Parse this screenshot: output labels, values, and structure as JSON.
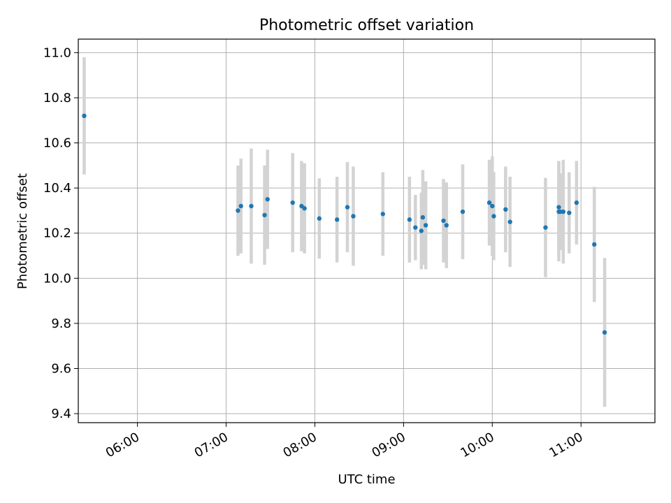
{
  "chart_data": {
    "type": "scatter",
    "title": "Photometric offset variation",
    "xlabel": "UTC time",
    "ylabel": "Photometric offset",
    "x_ticks": [
      "06:00",
      "07:00",
      "08:00",
      "09:00",
      "10:00",
      "11:00"
    ],
    "y_ticks": [
      "9.4",
      "9.6",
      "9.8",
      "10.0",
      "10.2",
      "10.4",
      "10.6",
      "10.8",
      "11.0"
    ],
    "xlim": [
      "05:20",
      "11:50"
    ],
    "ylim": [
      9.36,
      11.06
    ],
    "grid": true,
    "colors": {
      "point": "#1f77b4",
      "errorbar": "#d3d3d3"
    },
    "points": [
      {
        "x": "05:24",
        "y": 10.72,
        "yerr": 0.26
      },
      {
        "x": "07:08",
        "y": 10.3,
        "yerr": 0.2
      },
      {
        "x": "07:10",
        "y": 10.32,
        "yerr": 0.21
      },
      {
        "x": "07:17",
        "y": 10.32,
        "yerr": 0.255
      },
      {
        "x": "07:26",
        "y": 10.28,
        "yerr": 0.22
      },
      {
        "x": "07:28",
        "y": 10.35,
        "yerr": 0.22
      },
      {
        "x": "07:45",
        "y": 10.335,
        "yerr": 0.22
      },
      {
        "x": "07:51",
        "y": 10.32,
        "yerr": 0.2
      },
      {
        "x": "07:53",
        "y": 10.31,
        "yerr": 0.2
      },
      {
        "x": "08:03",
        "y": 10.265,
        "yerr": 0.178
      },
      {
        "x": "08:15",
        "y": 10.26,
        "yerr": 0.19
      },
      {
        "x": "08:22",
        "y": 10.315,
        "yerr": 0.2
      },
      {
        "x": "08:26",
        "y": 10.275,
        "yerr": 0.22
      },
      {
        "x": "08:46",
        "y": 10.285,
        "yerr": 0.185
      },
      {
        "x": "09:04",
        "y": 10.26,
        "yerr": 0.19
      },
      {
        "x": "09:08",
        "y": 10.225,
        "yerr": 0.145
      },
      {
        "x": "09:12",
        "y": 10.21,
        "yerr": 0.17
      },
      {
        "x": "09:13",
        "y": 10.27,
        "yerr": 0.21
      },
      {
        "x": "09:15",
        "y": 10.235,
        "yerr": 0.195
      },
      {
        "x": "09:27",
        "y": 10.255,
        "yerr": 0.185
      },
      {
        "x": "09:29",
        "y": 10.235,
        "yerr": 0.19
      },
      {
        "x": "09:40",
        "y": 10.295,
        "yerr": 0.21
      },
      {
        "x": "09:58",
        "y": 10.335,
        "yerr": 0.19
      },
      {
        "x": "10:00",
        "y": 10.32,
        "yerr": 0.22
      },
      {
        "x": "10:01",
        "y": 10.275,
        "yerr": 0.195
      },
      {
        "x": "10:09",
        "y": 10.305,
        "yerr": 0.19
      },
      {
        "x": "10:12",
        "y": 10.25,
        "yerr": 0.2
      },
      {
        "x": "10:36",
        "y": 10.225,
        "yerr": 0.22
      },
      {
        "x": "10:45",
        "y": 10.315,
        "yerr": 0.205
      },
      {
        "x": "10:45",
        "y": 10.295,
        "yerr": 0.22
      },
      {
        "x": "10:46",
        "y": 10.295,
        "yerr": 0.17
      },
      {
        "x": "10:48",
        "y": 10.295,
        "yerr": 0.23
      },
      {
        "x": "10:52",
        "y": 10.29,
        "yerr": 0.18
      },
      {
        "x": "10:57",
        "y": 10.335,
        "yerr": 0.185
      },
      {
        "x": "11:09",
        "y": 10.15,
        "yerr": 0.255
      },
      {
        "x": "11:16",
        "y": 9.76,
        "yerr": 0.33
      }
    ]
  }
}
